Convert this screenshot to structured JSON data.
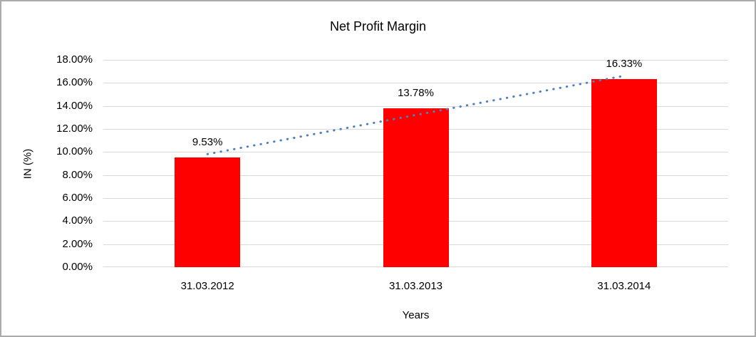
{
  "chart": {
    "title": "Net Profit Margin",
    "x_axis_title": "Years",
    "y_axis_title": "IN (%)"
  },
  "chart_data": {
    "type": "bar",
    "title": "Net Profit Margin",
    "xlabel": "Years",
    "ylabel": "IN (%)",
    "categories": [
      "31.03.2012",
      "31.03.2013",
      "31.03.2014"
    ],
    "values": [
      9.53,
      13.78,
      16.33
    ],
    "data_labels": [
      "9.53%",
      "13.78%",
      "16.33%"
    ],
    "ylim": [
      0,
      18
    ],
    "ytick_step": 2,
    "ytick_labels": [
      "0.00%",
      "2.00%",
      "4.00%",
      "6.00%",
      "8.00%",
      "10.00%",
      "12.00%",
      "14.00%",
      "16.00%",
      "18.00%"
    ],
    "grid": "horizontal",
    "legend": "none",
    "bar_color": "#FF0000",
    "trendline": {
      "type": "linear",
      "style": "dotted",
      "color": "#4F81BD"
    },
    "colors": {
      "gridline": "#D9D9D9",
      "text": "#000000",
      "background": "#FFFFFF",
      "frame_border": "#ABABAB"
    }
  }
}
